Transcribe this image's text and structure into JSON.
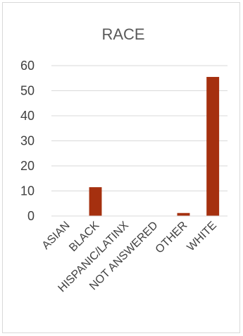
{
  "chart_data": {
    "type": "bar",
    "title": "RACE",
    "categories": [
      "ASIAN",
      "BLACK",
      "HISPANIC/LATINX",
      "NOT ANSWERED",
      "OTHER",
      "WHITE"
    ],
    "values": [
      0,
      11.5,
      0,
      0,
      1.2,
      55.5
    ],
    "ylim": [
      0,
      60
    ],
    "yticks": [
      0,
      10,
      20,
      30,
      40,
      50,
      60
    ],
    "grid": true,
    "legend": "none",
    "bar_color": "#a5300f"
  }
}
